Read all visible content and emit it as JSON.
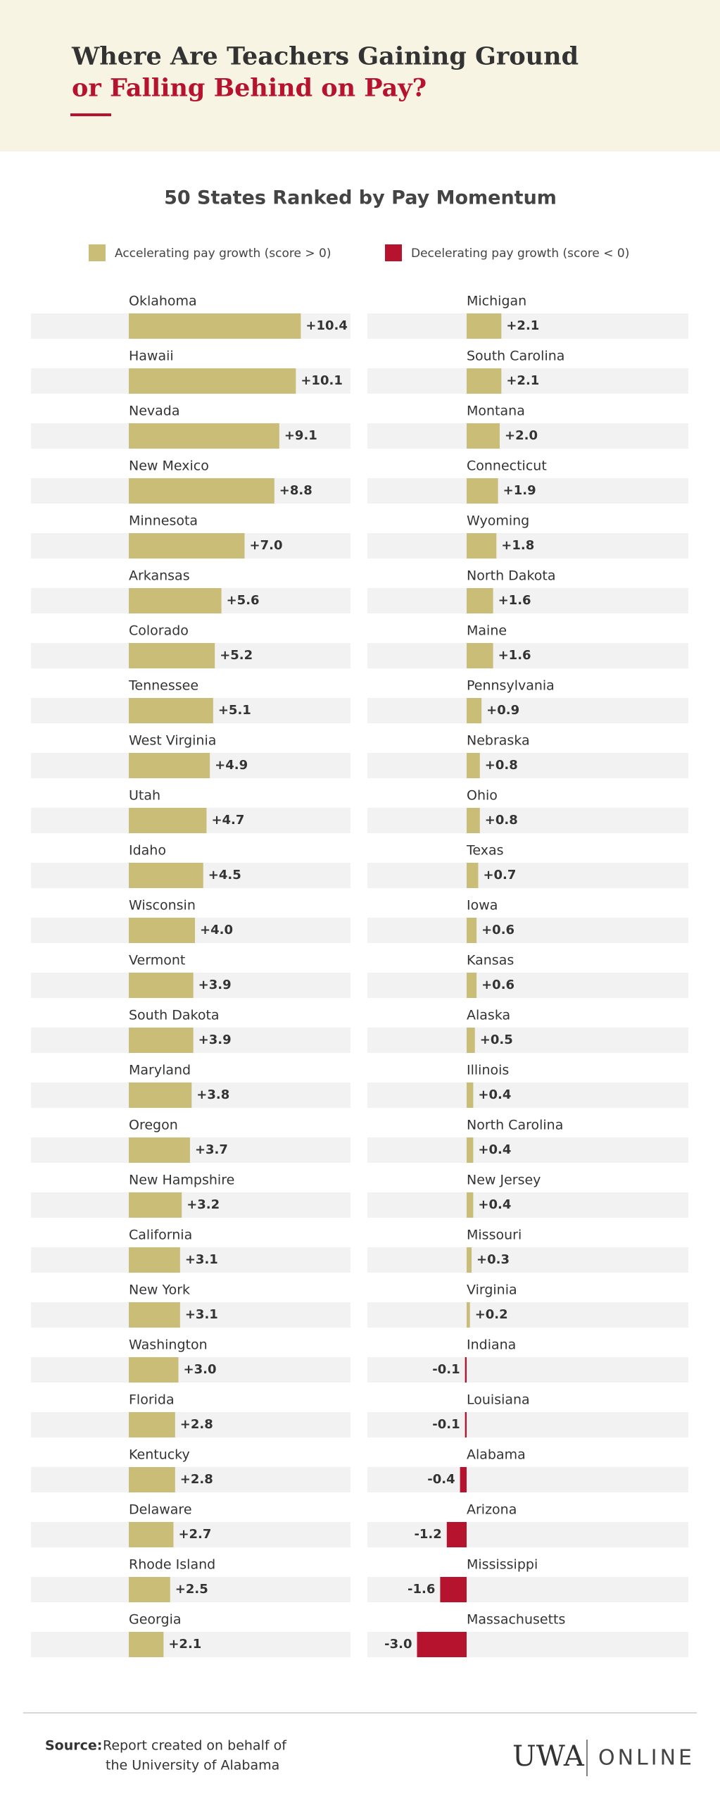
{
  "header": {
    "title_line1": "Where Are Teachers Gaining Ground",
    "title_line2": "or Falling Behind on Pay?"
  },
  "chart_data": {
    "type": "bar",
    "orientation": "horizontal",
    "title": "50 States Ranked by Pay Momentum",
    "legend": [
      {
        "label": "Accelerating pay growth (score > 0)",
        "color": "#c9bd78"
      },
      {
        "label": "Decelerating pay growth (score < 0)",
        "color": "#b5132e"
      }
    ],
    "categories": [
      "Oklahoma",
      "Hawaii",
      "Nevada",
      "New Mexico",
      "Minnesota",
      "Arkansas",
      "Colorado",
      "Tennessee",
      "West Virginia",
      "Utah",
      "Idaho",
      "Wisconsin",
      "Vermont",
      "South Dakota",
      "Maryland",
      "Oregon",
      "New Hampshire",
      "California",
      "New York",
      "Washington",
      "Florida",
      "Kentucky",
      "Delaware",
      "Rhode Island",
      "Georgia",
      "Michigan",
      "South Carolina",
      "Montana",
      "Connecticut",
      "Wyoming",
      "North Dakota",
      "Maine",
      "Pennsylvania",
      "Nebraska",
      "Ohio",
      "Texas",
      "Iowa",
      "Kansas",
      "Alaska",
      "Illinois",
      "North Carolina",
      "New Jersey",
      "Missouri",
      "Virginia",
      "Indiana",
      "Louisiana",
      "Alabama",
      "Arizona",
      "Mississippi",
      "Massachusetts"
    ],
    "values": [
      10.4,
      10.1,
      9.1,
      8.8,
      7.0,
      5.6,
      5.2,
      5.1,
      4.9,
      4.7,
      4.5,
      4.0,
      3.9,
      3.9,
      3.8,
      3.7,
      3.2,
      3.1,
      3.1,
      3.0,
      2.8,
      2.8,
      2.7,
      2.5,
      2.1,
      2.1,
      2.1,
      2.0,
      1.9,
      1.8,
      1.6,
      1.6,
      0.9,
      0.8,
      0.8,
      0.7,
      0.6,
      0.6,
      0.5,
      0.4,
      0.4,
      0.4,
      0.3,
      0.2,
      -0.1,
      -0.1,
      -0.4,
      -1.2,
      -1.6,
      -3.0
    ],
    "value_labels": [
      "+10.4",
      "+10.1",
      "+9.1",
      "+8.8",
      "+7.0",
      "+5.6",
      "+5.2",
      "+5.1",
      "+4.9",
      "+4.7",
      "+4.5",
      "+4.0",
      "+3.9",
      "+3.9",
      "+3.8",
      "+3.7",
      "+3.2",
      "+3.1",
      "+3.1",
      "+3.0",
      "+2.8",
      "+2.8",
      "+2.7",
      "+2.5",
      "+2.1",
      "+2.1",
      "+2.1",
      "+2.0",
      "+1.9",
      "+1.8",
      "+1.6",
      "+1.6",
      "+0.9",
      "+0.8",
      "+0.8",
      "+0.7",
      "+0.6",
      "+0.6",
      "+0.5",
      "+0.4",
      "+0.4",
      "+0.4",
      "+0.3",
      "+0.2",
      "-0.1",
      "-0.1",
      "-0.4",
      "-1.2",
      "-1.6",
      "-3.0"
    ]
  },
  "footer": {
    "source_label": "Source:",
    "source_line1": "Report created on behalf of",
    "source_line2": "the University of Alabama",
    "logo_mark": "UWA",
    "logo_text": "ONLINE"
  }
}
